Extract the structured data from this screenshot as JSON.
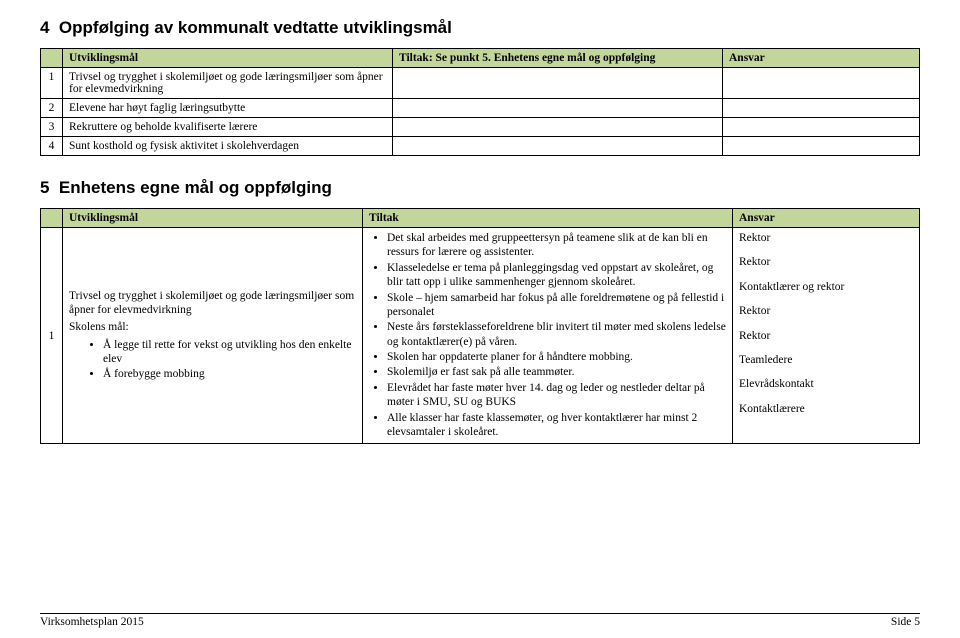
{
  "section4": {
    "number": "4",
    "title": "Oppfølging av kommunalt vedtatte utviklingsmål",
    "headers": {
      "num": "",
      "utviklingsmal": "Utviklingsmål",
      "tiltak": "Tiltak: Se punkt 5. Enhetens egne mål og oppfølging",
      "ansvar": "Ansvar"
    },
    "rows": [
      {
        "n": "1",
        "text": "Trivsel og trygghet i skolemiljøet og gode læringsmiljøer som åpner for elevmedvirkning"
      },
      {
        "n": "2",
        "text": "Elevene har høyt faglig læringsutbytte"
      },
      {
        "n": "3",
        "text": "Rekruttere og beholde kvalifiserte lærere"
      },
      {
        "n": "4",
        "text": "Sunt kosthold og fysisk aktivitet i skolehverdagen"
      }
    ],
    "header_bg": "#c2d69b"
  },
  "section5": {
    "number": "5",
    "title": "Enhetens egne mål og oppfølging",
    "headers": {
      "num": "",
      "utviklingsmal": "Utviklingsmål",
      "tiltak": "Tiltak",
      "ansvar": "Ansvar"
    },
    "row": {
      "n": "1",
      "utv_intro": "Trivsel og trygghet i skolemiljøet og gode læringsmiljøer som åpner for elevmedvirkning",
      "utv_skolens_maal": "Skolens mål:",
      "utv_bullets": [
        "Å legge til rette for vekst og utvikling hos den enkelte elev",
        "Å forebygge mobbing"
      ],
      "tiltak_bullets": [
        "Det skal arbeides med gruppeettersyn på teamene slik at de kan bli en ressurs for lærere og assistenter.",
        "Klasseledelse er tema på planleggingsdag ved oppstart av skoleåret, og blir tatt opp i ulike sammenhenger gjennom skoleåret.",
        "Skole – hjem samarbeid har fokus på alle foreldremøtene og på fellestid i personalet",
        "Neste års førsteklasseforeldrene blir invitert til møter med skolens ledelse og kontaktlærer(e) på våren.",
        "Skolen har oppdaterte planer for å håndtere mobbing.",
        "Skolemiljø er fast sak på alle teammøter.",
        "Elevrådet har faste møter hver 14. dag og leder og nestleder deltar på møter i SMU, SU og BUKS",
        "Alle klasser har faste klassemøter, og hver kontaktlærer har minst 2 elevsamtaler i skoleåret."
      ],
      "ansvar_lines": [
        "Rektor",
        "Rektor",
        "Kontaktlærer og rektor",
        "Rektor",
        "Rektor",
        "Teamledere",
        "Elevrådskontakt",
        "Kontaktlærere"
      ]
    },
    "header_bg": "#c2d69b"
  },
  "footer": {
    "left": "Virksomhetsplan 2015",
    "right": "Side 5"
  }
}
